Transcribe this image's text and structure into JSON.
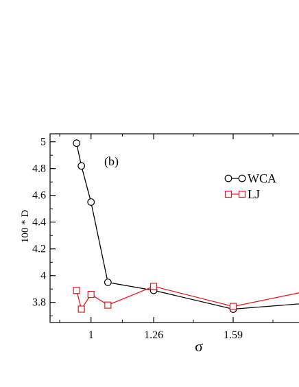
{
  "chart_data": {
    "type": "line",
    "panel_label": "(b)",
    "xlabel": "σ",
    "ylabel": "100 * D",
    "xlim": [
      0.83,
      1.94
    ],
    "ylim": [
      3.65,
      5.06
    ],
    "xticks": [
      1,
      1.26,
      1.59
    ],
    "xtick_labels": [
      "1",
      "1.26",
      "1.59"
    ],
    "yticks": [
      3.8,
      4.0,
      4.2,
      4.4,
      4.6,
      4.8,
      5.0
    ],
    "ytick_labels": [
      "3.8",
      "4",
      "4.2",
      "4.4",
      "4.6",
      "4.8",
      "5"
    ],
    "grid": false,
    "legend_position": "top-right",
    "series": [
      {
        "name": "WCA",
        "color": "#000000",
        "marker": "circle",
        "x": [
          0.94,
          0.96,
          1.0,
          1.07,
          1.26,
          1.59,
          1.94
        ],
        "y": [
          4.99,
          4.82,
          4.55,
          3.95,
          3.89,
          3.75,
          3.8
        ]
      },
      {
        "name": "LJ",
        "color": "#e8181c",
        "marker": "square",
        "x": [
          0.94,
          0.96,
          1.0,
          1.07,
          1.26,
          1.59,
          1.94
        ],
        "y": [
          3.89,
          3.75,
          3.86,
          3.78,
          3.92,
          3.77,
          3.9
        ]
      }
    ]
  }
}
